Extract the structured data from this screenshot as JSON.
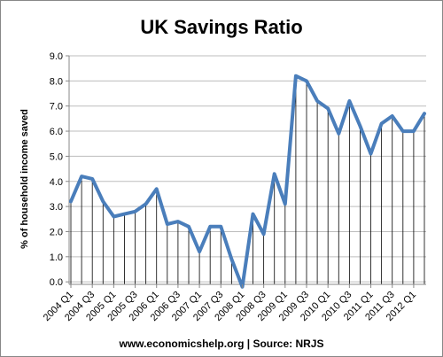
{
  "chart_data": {
    "type": "line",
    "title": "UK Savings Ratio",
    "xlabel": "",
    "ylabel": "% of household income saved",
    "source": "www.economicshelp.org | Source: NRJS",
    "ylim": [
      -0.1,
      9.0
    ],
    "yticks": [
      "0.0",
      "1.0",
      "2.0",
      "3.0",
      "4.0",
      "5.0",
      "6.0",
      "7.0",
      "8.0",
      "9.0"
    ],
    "grid": true,
    "legend": "none",
    "drop_lines": true,
    "series_color": "#4a7ebb",
    "x": [
      "2004 Q1",
      "2004 Q2",
      "2004 Q3",
      "2004 Q4",
      "2005 Q1",
      "2005 Q2",
      "2005 Q3",
      "2005 Q4",
      "2006 Q1",
      "2006 Q2",
      "2006 Q3",
      "2006 Q4",
      "2007 Q1",
      "2007 Q2",
      "2007 Q3",
      "2007 Q4",
      "2008 Q1",
      "2008 Q2",
      "2008 Q3",
      "2008 Q4",
      "2009 Q1",
      "2009 Q2",
      "2009 Q3",
      "2009 Q4",
      "2010 Q1",
      "2010 Q2",
      "2010 Q3",
      "2010 Q4",
      "2011 Q1",
      "2011 Q2",
      "2011 Q3",
      "2011 Q4",
      "2012 Q1",
      "2012 Q2"
    ],
    "x_tick_labels": [
      "2004 Q1",
      "2004 Q3",
      "2005 Q1",
      "2005 Q3",
      "2006 Q1",
      "2006 Q3",
      "2007 Q1",
      "2007 Q3",
      "2008 Q1",
      "2008 Q3",
      "2009 Q1",
      "2009 Q3",
      "2010 Q1",
      "2010 Q3",
      "2011 Q1",
      "2011 Q3",
      "2012 Q1"
    ],
    "series": [
      {
        "values": [
          3.2,
          4.2,
          4.1,
          3.2,
          2.6,
          2.7,
          2.8,
          3.1,
          3.7,
          2.3,
          2.4,
          2.2,
          1.2,
          2.2,
          2.2,
          0.9,
          -0.2,
          2.7,
          1.9,
          4.3,
          3.1,
          8.2,
          8.0,
          7.2,
          6.9,
          5.9,
          7.2,
          6.2,
          5.1,
          6.3,
          6.6,
          6.0,
          6.0,
          6.7
        ]
      }
    ]
  }
}
